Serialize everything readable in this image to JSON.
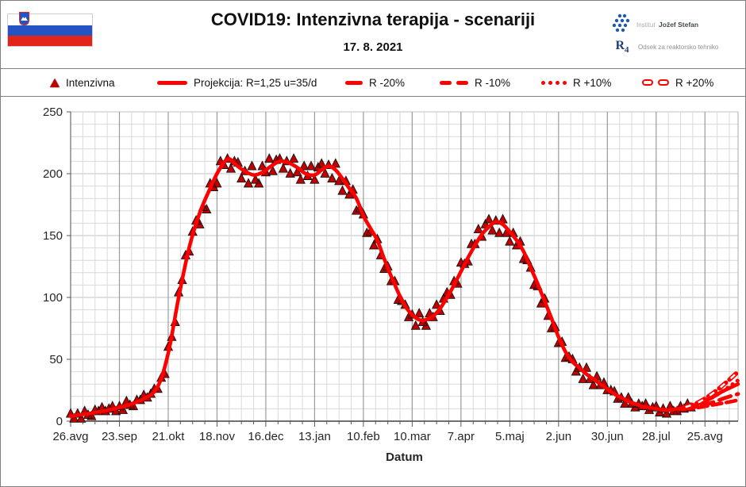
{
  "header": {
    "title": "COVID19: Intenzivna terapija - scenariji",
    "date": "17. 8. 2021",
    "flag": "slovenia",
    "logo": {
      "institute_light": "Institut",
      "institute_bold": "Jožef Stefan",
      "mark": "R",
      "mark_sub": "4",
      "department": "Odsek za reaktorsko tehniko"
    }
  },
  "legend": {
    "items": [
      {
        "label": "Intenzivna",
        "marker": "triangle"
      },
      {
        "label": "Projekcija: R=1,25 u=35/d",
        "marker": "solid-line"
      },
      {
        "label": "R -20%",
        "marker": "dash"
      },
      {
        "label": "R -10%",
        "marker": "dashes"
      },
      {
        "label": "R +10%",
        "marker": "dots"
      },
      {
        "label": "R +20%",
        "marker": "hollow-dashes"
      }
    ]
  },
  "chart_data": {
    "type": "line",
    "title": "COVID19: Intenzivna terapija - scenariji",
    "xlabel": "Datum",
    "ylabel": "",
    "ylim": [
      0,
      250
    ],
    "y_tick_step": 50,
    "y_minor_step": 10,
    "grid": "on",
    "x_tick_labels": [
      "26.avg",
      "23.sep",
      "21.okt",
      "18.nov",
      "16.dec",
      "13.jan",
      "10.feb",
      "10.mar",
      "7.apr",
      "5.maj",
      "2.jun",
      "30.jun",
      "28.jul",
      "25.avg"
    ],
    "x_tick_days": [
      0,
      28,
      56,
      84,
      112,
      140,
      168,
      196,
      224,
      252,
      280,
      308,
      336,
      364
    ],
    "x_minor_step_days": 7,
    "x_axis_end_day": 383,
    "colors": {
      "marker_fill": "#c00000",
      "marker_stroke": "#141414",
      "line": "#ff0000",
      "grid_minor": "#d9d9d9",
      "grid_major": "#9b9b9b",
      "grid_h_major": "#c2c2c2",
      "axis": "#404040",
      "tick": "#595959",
      "text": "#262626"
    },
    "series": [
      {
        "name": "Intenzivna",
        "style": "markers",
        "points": [
          [
            0,
            6
          ],
          [
            2,
            2
          ],
          [
            4,
            6
          ],
          [
            6,
            2
          ],
          [
            8,
            8
          ],
          [
            10,
            5
          ],
          [
            12,
            4
          ],
          [
            14,
            9
          ],
          [
            16,
            8
          ],
          [
            18,
            11
          ],
          [
            20,
            8
          ],
          [
            22,
            10
          ],
          [
            24,
            12
          ],
          [
            26,
            8
          ],
          [
            28,
            12
          ],
          [
            30,
            9
          ],
          [
            32,
            16
          ],
          [
            34,
            13
          ],
          [
            36,
            12
          ],
          [
            38,
            17
          ],
          [
            40,
            17
          ],
          [
            42,
            21
          ],
          [
            44,
            19
          ],
          [
            46,
            22
          ],
          [
            48,
            26
          ],
          [
            50,
            26
          ],
          [
            52,
            35
          ],
          [
            54,
            38
          ],
          [
            56,
            60
          ],
          [
            58,
            68
          ],
          [
            60,
            80
          ],
          [
            62,
            104
          ],
          [
            64,
            114
          ],
          [
            66,
            134
          ],
          [
            68,
            137
          ],
          [
            70,
            153
          ],
          [
            72,
            162
          ],
          [
            74,
            159
          ],
          [
            76,
            173
          ],
          [
            78,
            171
          ],
          [
            80,
            192
          ],
          [
            82,
            189
          ],
          [
            84,
            192
          ],
          [
            86,
            210
          ],
          [
            88,
            207
          ],
          [
            90,
            212
          ],
          [
            92,
            204
          ],
          [
            94,
            210
          ],
          [
            96,
            209
          ],
          [
            98,
            196
          ],
          [
            100,
            202
          ],
          [
            102,
            192
          ],
          [
            104,
            206
          ],
          [
            106,
            195
          ],
          [
            108,
            192
          ],
          [
            110,
            206
          ],
          [
            112,
            201
          ],
          [
            114,
            212
          ],
          [
            116,
            202
          ],
          [
            118,
            211
          ],
          [
            120,
            212
          ],
          [
            122,
            204
          ],
          [
            124,
            210
          ],
          [
            126,
            200
          ],
          [
            128,
            212
          ],
          [
            130,
            201
          ],
          [
            132,
            195
          ],
          [
            134,
            206
          ],
          [
            136,
            198
          ],
          [
            138,
            206
          ],
          [
            140,
            195
          ],
          [
            142,
            205
          ],
          [
            144,
            208
          ],
          [
            146,
            200
          ],
          [
            148,
            207
          ],
          [
            150,
            196
          ],
          [
            152,
            208
          ],
          [
            154,
            194
          ],
          [
            156,
            186
          ],
          [
            158,
            194
          ],
          [
            160,
            183
          ],
          [
            162,
            187
          ],
          [
            164,
            170
          ],
          [
            166,
            172
          ],
          [
            168,
            167
          ],
          [
            170,
            152
          ],
          [
            172,
            153
          ],
          [
            174,
            142
          ],
          [
            176,
            147
          ],
          [
            178,
            134
          ],
          [
            180,
            123
          ],
          [
            182,
            125
          ],
          [
            184,
            113
          ],
          [
            186,
            113
          ],
          [
            188,
            98
          ],
          [
            190,
            97
          ],
          [
            192,
            94
          ],
          [
            194,
            84
          ],
          [
            196,
            86
          ],
          [
            198,
            77
          ],
          [
            200,
            87
          ],
          [
            202,
            80
          ],
          [
            204,
            77
          ],
          [
            206,
            87
          ],
          [
            208,
            84
          ],
          [
            210,
            94
          ],
          [
            212,
            89
          ],
          [
            214,
            99
          ],
          [
            216,
            104
          ],
          [
            218,
            102
          ],
          [
            220,
            113
          ],
          [
            222,
            111
          ],
          [
            224,
            128
          ],
          [
            226,
            127
          ],
          [
            228,
            129
          ],
          [
            230,
            143
          ],
          [
            232,
            143
          ],
          [
            234,
            155
          ],
          [
            236,
            149
          ],
          [
            238,
            159
          ],
          [
            240,
            163
          ],
          [
            242,
            154
          ],
          [
            244,
            162
          ],
          [
            246,
            152
          ],
          [
            248,
            163
          ],
          [
            250,
            152
          ],
          [
            252,
            145
          ],
          [
            254,
            152
          ],
          [
            256,
            142
          ],
          [
            258,
            145
          ],
          [
            260,
            131
          ],
          [
            262,
            130
          ],
          [
            264,
            124
          ],
          [
            266,
            110
          ],
          [
            268,
            109
          ],
          [
            270,
            95
          ],
          [
            272,
            99
          ],
          [
            274,
            85
          ],
          [
            276,
            75
          ],
          [
            278,
            76
          ],
          [
            280,
            63
          ],
          [
            282,
            64
          ],
          [
            284,
            51
          ],
          [
            286,
            52
          ],
          [
            288,
            50
          ],
          [
            290,
            40
          ],
          [
            292,
            43
          ],
          [
            294,
            34
          ],
          [
            296,
            43
          ],
          [
            298,
            34
          ],
          [
            300,
            29
          ],
          [
            302,
            36
          ],
          [
            304,
            29
          ],
          [
            306,
            31
          ],
          [
            308,
            25
          ],
          [
            310,
            25
          ],
          [
            312,
            24
          ],
          [
            314,
            18
          ],
          [
            316,
            19
          ],
          [
            318,
            14
          ],
          [
            320,
            19
          ],
          [
            322,
            14
          ],
          [
            324,
            11
          ],
          [
            326,
            14
          ],
          [
            328,
            12
          ],
          [
            330,
            14
          ],
          [
            332,
            9
          ],
          [
            334,
            11
          ],
          [
            336,
            12
          ],
          [
            338,
            7
          ],
          [
            340,
            10
          ],
          [
            342,
            6
          ],
          [
            344,
            12
          ],
          [
            346,
            8
          ],
          [
            348,
            8
          ],
          [
            350,
            12
          ],
          [
            352,
            10
          ],
          [
            354,
            14
          ],
          [
            356,
            11
          ]
        ]
      },
      {
        "name": "Projekcija: R=1,25 u=35/d",
        "style": "solid",
        "points": [
          [
            0,
            4
          ],
          [
            14,
            7
          ],
          [
            28,
            11
          ],
          [
            42,
            18
          ],
          [
            50,
            28
          ],
          [
            56,
            55
          ],
          [
            62,
            100
          ],
          [
            68,
            140
          ],
          [
            74,
            168
          ],
          [
            80,
            188
          ],
          [
            84,
            200
          ],
          [
            88,
            209
          ],
          [
            91,
            212
          ],
          [
            95,
            207
          ],
          [
            100,
            202
          ],
          [
            105,
            199
          ],
          [
            110,
            201
          ],
          [
            115,
            206
          ],
          [
            120,
            210
          ],
          [
            125,
            209
          ],
          [
            130,
            205
          ],
          [
            135,
            200
          ],
          [
            140,
            199
          ],
          [
            144,
            203
          ],
          [
            148,
            206
          ],
          [
            152,
            203
          ],
          [
            156,
            196
          ],
          [
            160,
            188
          ],
          [
            164,
            180
          ],
          [
            168,
            166
          ],
          [
            172,
            156
          ],
          [
            176,
            146
          ],
          [
            180,
            131
          ],
          [
            184,
            117
          ],
          [
            188,
            104
          ],
          [
            192,
            93
          ],
          [
            196,
            86
          ],
          [
            200,
            82
          ],
          [
            204,
            82
          ],
          [
            208,
            85
          ],
          [
            212,
            91
          ],
          [
            216,
            100
          ],
          [
            220,
            110
          ],
          [
            224,
            121
          ],
          [
            228,
            132
          ],
          [
            232,
            142
          ],
          [
            236,
            151
          ],
          [
            240,
            157
          ],
          [
            244,
            161
          ],
          [
            248,
            159
          ],
          [
            252,
            153
          ],
          [
            256,
            146
          ],
          [
            260,
            137
          ],
          [
            264,
            124
          ],
          [
            268,
            111
          ],
          [
            272,
            97
          ],
          [
            276,
            83
          ],
          [
            280,
            68
          ],
          [
            284,
            56
          ],
          [
            288,
            48
          ],
          [
            292,
            43
          ],
          [
            296,
            38
          ],
          [
            300,
            34
          ],
          [
            304,
            30
          ],
          [
            308,
            26
          ],
          [
            312,
            22
          ],
          [
            316,
            19
          ],
          [
            320,
            16
          ],
          [
            324,
            14
          ],
          [
            328,
            12
          ],
          [
            332,
            11
          ],
          [
            336,
            10
          ],
          [
            340,
            9
          ],
          [
            344,
            9
          ],
          [
            348,
            10
          ],
          [
            352,
            10
          ],
          [
            356,
            12
          ],
          [
            362,
            15
          ],
          [
            368,
            19
          ],
          [
            374,
            24
          ],
          [
            380,
            28
          ],
          [
            383,
            30
          ]
        ]
      },
      {
        "name": "R -20%",
        "style": "dash",
        "points": [
          [
            352,
            10
          ],
          [
            360,
            11
          ],
          [
            368,
            13
          ],
          [
            376,
            15
          ],
          [
            383,
            17
          ]
        ]
      },
      {
        "name": "R -10%",
        "style": "dash2",
        "points": [
          [
            352,
            10
          ],
          [
            360,
            12
          ],
          [
            368,
            15
          ],
          [
            376,
            19
          ],
          [
            383,
            22
          ]
        ]
      },
      {
        "name": "R +10%",
        "style": "dots",
        "points": [
          [
            352,
            11
          ],
          [
            360,
            14
          ],
          [
            368,
            19
          ],
          [
            376,
            26
          ],
          [
            383,
            33
          ]
        ]
      },
      {
        "name": "R +20%",
        "style": "hollow",
        "points": [
          [
            352,
            11
          ],
          [
            360,
            15
          ],
          [
            368,
            22
          ],
          [
            376,
            31
          ],
          [
            383,
            40
          ]
        ]
      }
    ]
  }
}
